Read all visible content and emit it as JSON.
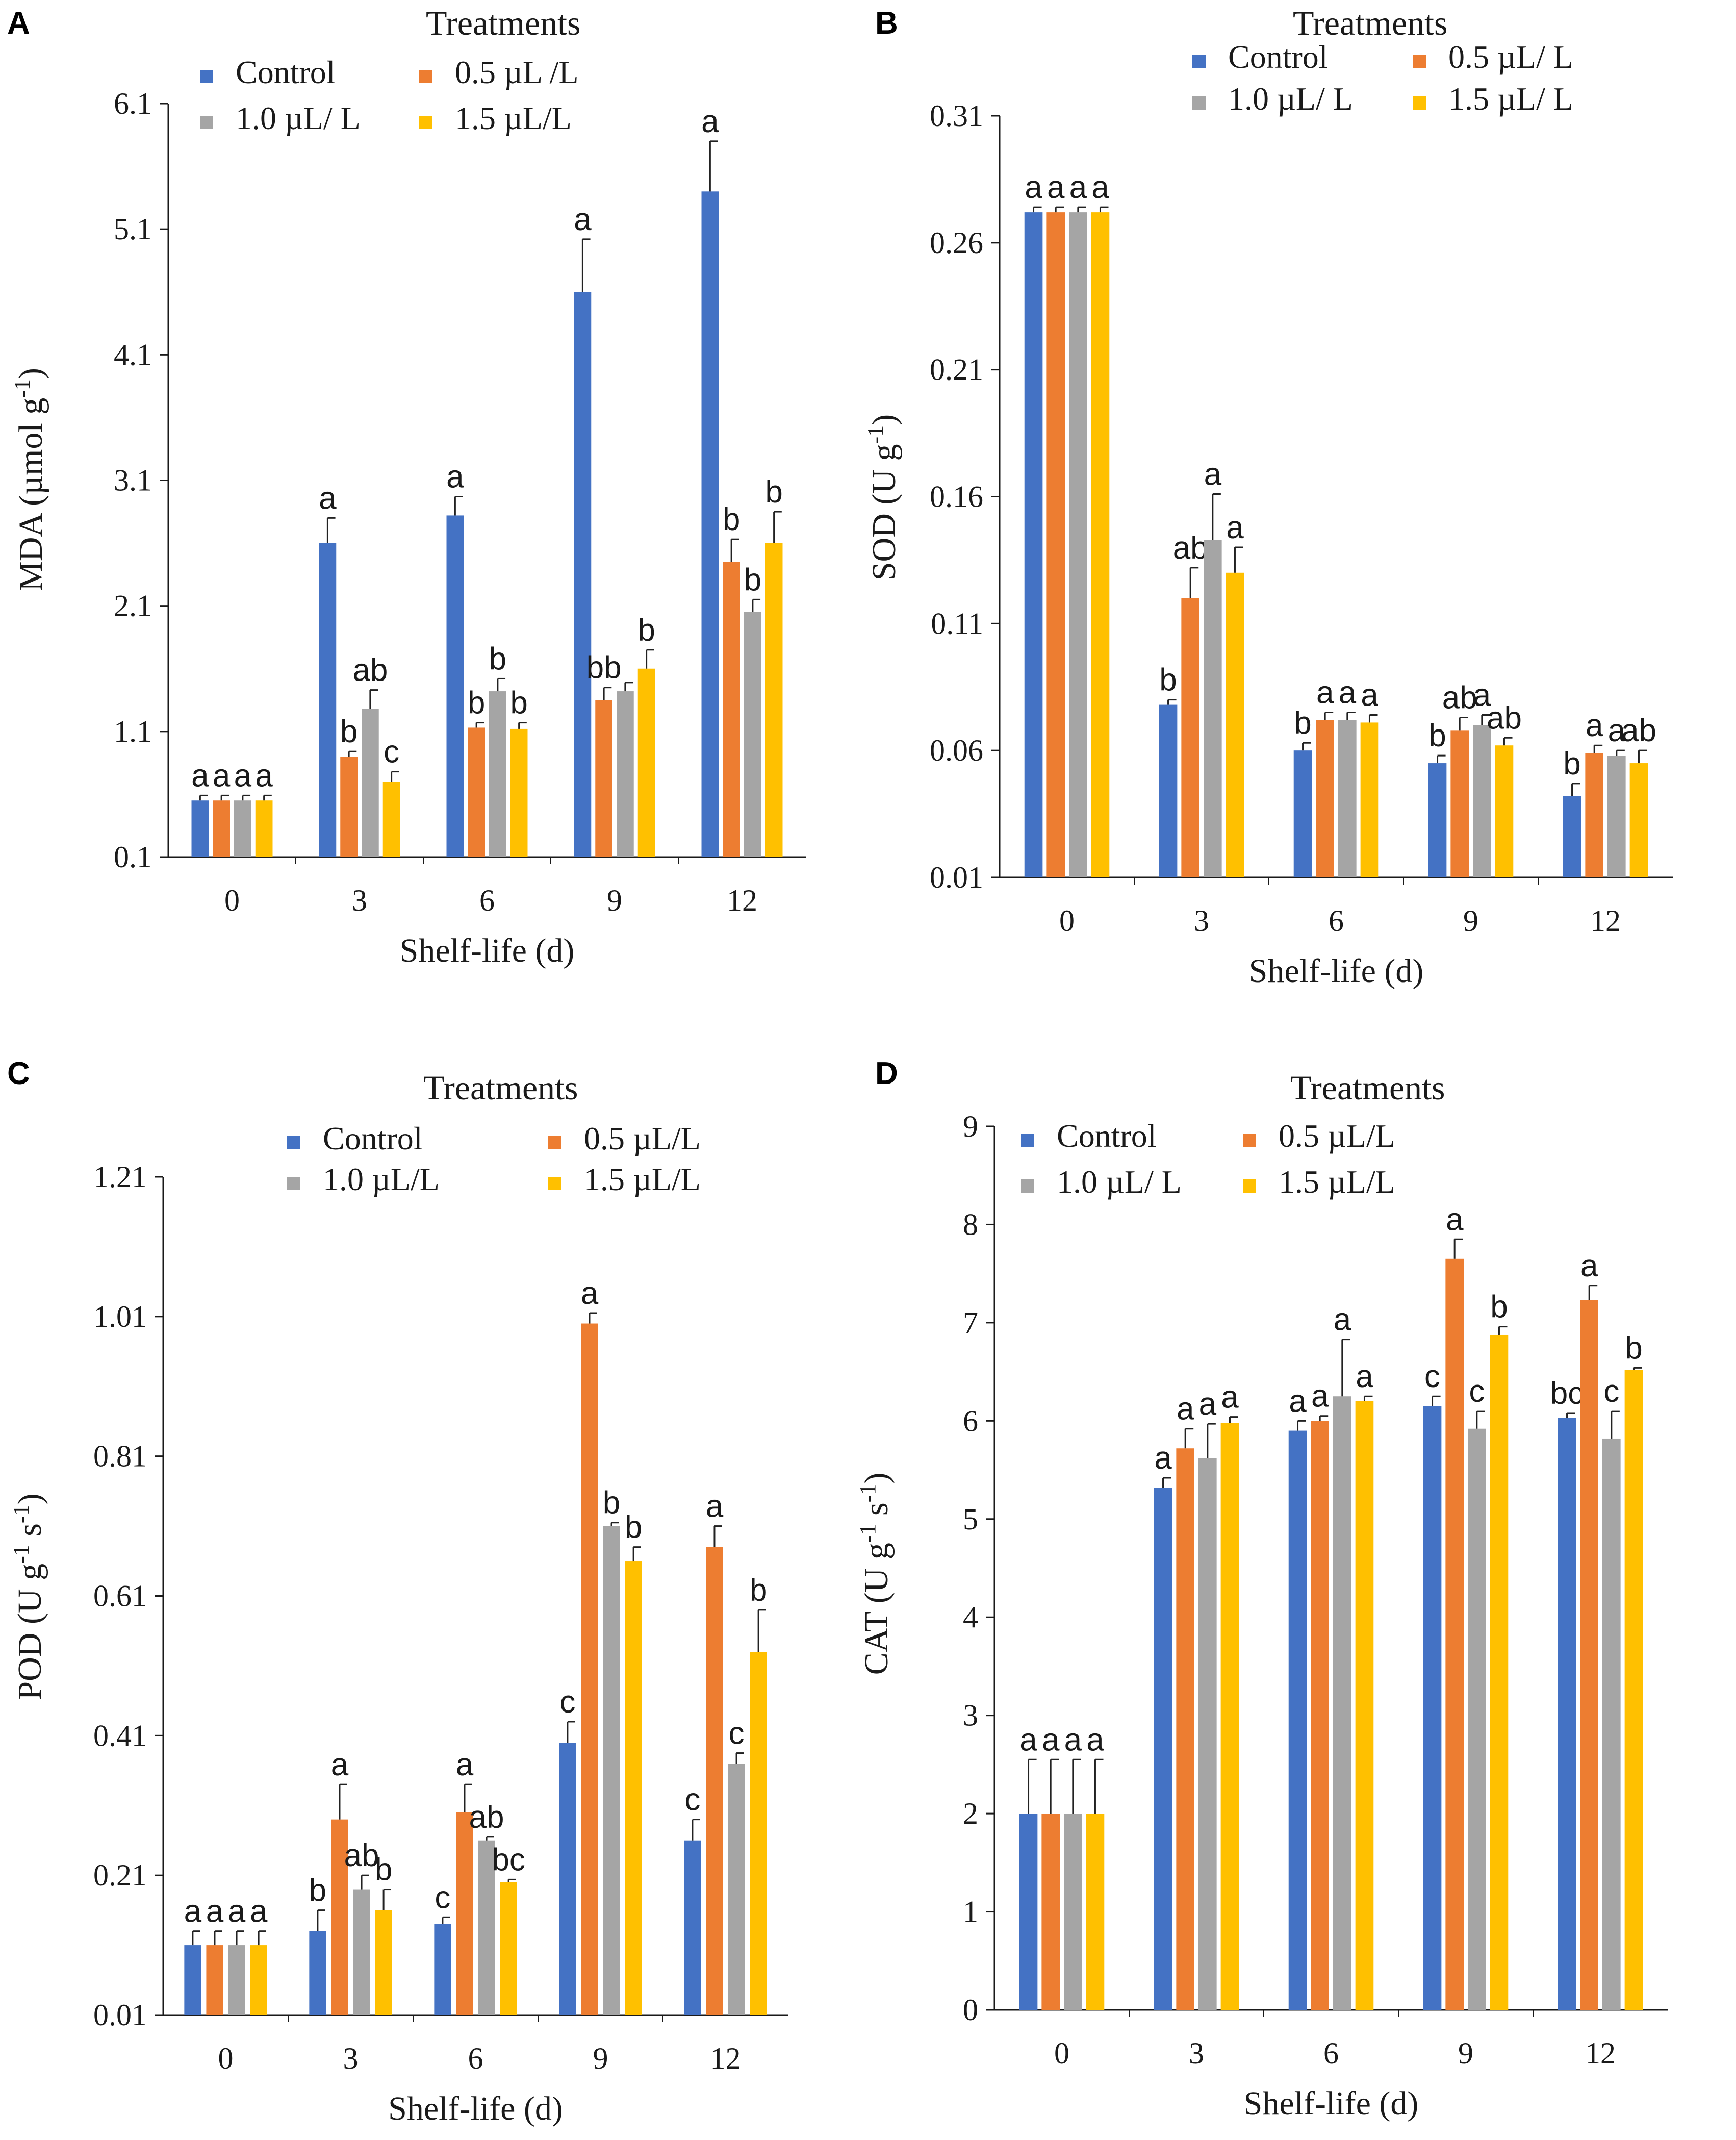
{
  "figure": {
    "legend_title": "Treatments",
    "xlabel": "Shelf-life (d)",
    "categories": [
      "0",
      "3",
      "6",
      "9",
      "12"
    ],
    "colors": [
      "#4472C4",
      "#ED7D31",
      "#A5A5A5",
      "#FFC000"
    ]
  },
  "chart_data": [
    {
      "panel": "A",
      "type": "bar",
      "title": "",
      "xlabel": "Shelf-life (d)",
      "ylabel": "MDA (µmol g-1)",
      "ylabel_main": "MDA (µmol g",
      "ylabel_sup": "-1",
      "ylabel_end": ")",
      "ylim": [
        0.1,
        6.1
      ],
      "yticks": [
        0.1,
        1.1,
        2.1,
        3.1,
        4.1,
        5.1,
        6.1
      ],
      "ytick_labels": [
        "0.1",
        "1.1",
        "2.1",
        "3.1",
        "4.1",
        "5.1",
        "6.1"
      ],
      "categories": [
        "0",
        "3",
        "6",
        "9",
        "12"
      ],
      "legend_title": "Treatments",
      "series": [
        {
          "name": "Control",
          "values": [
            0.55,
            2.6,
            2.82,
            4.6,
            5.4
          ],
          "errors": [
            0.04,
            0.2,
            0.15,
            0.42,
            0.4
          ],
          "labels": [
            "a",
            "a",
            "a",
            "a",
            "a"
          ]
        },
        {
          "name": "0.5 µL /L",
          "values": [
            0.55,
            0.9,
            1.13,
            1.35,
            2.45
          ],
          "errors": [
            0.04,
            0.04,
            0.04,
            0.1,
            0.18
          ],
          "labels": [
            "a",
            "b",
            "b",
            "bb",
            "b"
          ]
        },
        {
          "name": "1.0 µL/ L",
          "values": [
            0.55,
            1.28,
            1.42,
            1.42,
            2.05
          ],
          "errors": [
            0.04,
            0.15,
            0.1,
            0.07,
            0.1
          ],
          "labels": [
            "a",
            "ab",
            "b",
            "",
            "b"
          ]
        },
        {
          "name": "1.5 µL/L",
          "values": [
            0.55,
            0.7,
            1.12,
            1.6,
            2.6
          ],
          "errors": [
            0.04,
            0.08,
            0.05,
            0.15,
            0.25
          ],
          "labels": [
            "a",
            "c",
            "b",
            "b",
            "b"
          ]
        }
      ]
    },
    {
      "panel": "B",
      "type": "bar",
      "title": "",
      "xlabel": "Shelf-life (d)",
      "ylabel": "SOD (U g-1)",
      "ylabel_main": "SOD (U g",
      "ylabel_sup": "-1",
      "ylabel_end": ")",
      "ylim": [
        0.01,
        0.31
      ],
      "yticks": [
        0.01,
        0.06,
        0.11,
        0.16,
        0.21,
        0.26,
        0.31
      ],
      "ytick_labels": [
        "0.01",
        "0.06",
        "0.11",
        "0.16",
        "0.21",
        "0.26",
        "0.31"
      ],
      "categories": [
        "0",
        "3",
        "6",
        "9",
        "12"
      ],
      "legend_title": "Treatments",
      "series": [
        {
          "name": "Control",
          "values": [
            0.272,
            0.078,
            0.06,
            0.055,
            0.042
          ],
          "errors": [
            0.002,
            0.002,
            0.003,
            0.003,
            0.005
          ],
          "labels": [
            "a",
            "b",
            "b",
            "b",
            "b"
          ]
        },
        {
          "name": "0.5 µL/ L",
          "values": [
            0.272,
            0.12,
            0.072,
            0.068,
            0.059
          ],
          "errors": [
            0.002,
            0.012,
            0.003,
            0.005,
            0.003
          ],
          "labels": [
            "a",
            "ab",
            "a",
            "ab",
            "a"
          ]
        },
        {
          "name": "1.0 µL/ L",
          "values": [
            0.272,
            0.143,
            0.072,
            0.07,
            0.058
          ],
          "errors": [
            0.002,
            0.018,
            0.003,
            0.004,
            0.002
          ],
          "labels": [
            "a",
            "a",
            "a",
            "a",
            "a"
          ]
        },
        {
          "name": "1.5 µL/ L",
          "values": [
            0.272,
            0.13,
            0.071,
            0.062,
            0.055
          ],
          "errors": [
            0.002,
            0.01,
            0.003,
            0.003,
            0.005
          ],
          "labels": [
            "a",
            "a",
            "a",
            "ab",
            "ab"
          ]
        }
      ]
    },
    {
      "panel": "C",
      "type": "bar",
      "title": "",
      "xlabel": "Shelf-life (d)",
      "ylabel": "POD (U g-1 s-1)",
      "ylabel_main": "POD (U g",
      "ylabel_sup": "-1",
      "ylabel_mid": " s",
      "ylabel_sup2": "-1",
      "ylabel_end": ")",
      "ylim": [
        0.01,
        1.21
      ],
      "yticks": [
        0.01,
        0.21,
        0.41,
        0.61,
        0.81,
        1.01,
        1.21
      ],
      "ytick_labels": [
        "0.01",
        "0.21",
        "0.41",
        "0.61",
        "0.81",
        "1.01",
        "1.21"
      ],
      "categories": [
        "0",
        "3",
        "6",
        "9",
        "12"
      ],
      "legend_title": "Treatments",
      "series": [
        {
          "name": "Control",
          "values": [
            0.11,
            0.13,
            0.14,
            0.4,
            0.26
          ],
          "errors": [
            0.02,
            0.03,
            0.01,
            0.03,
            0.03
          ],
          "labels": [
            "a",
            "b",
            "c",
            "c",
            "c"
          ]
        },
        {
          "name": "0.5 µL/L",
          "values": [
            0.11,
            0.29,
            0.3,
            1.0,
            0.68
          ],
          "errors": [
            0.02,
            0.05,
            0.04,
            0.015,
            0.03
          ],
          "labels": [
            "a",
            "a",
            "a",
            "a",
            "a"
          ]
        },
        {
          "name": "1.0 µL/L",
          "values": [
            0.11,
            0.19,
            0.26,
            0.71,
            0.37
          ],
          "errors": [
            0.02,
            0.02,
            0.005,
            0.005,
            0.015
          ],
          "labels": [
            "a",
            "ab",
            "ab",
            "b",
            "c"
          ]
        },
        {
          "name": "1.5 µL/L",
          "values": [
            0.11,
            0.16,
            0.2,
            0.66,
            0.53
          ],
          "errors": [
            0.02,
            0.03,
            0.004,
            0.02,
            0.06
          ],
          "labels": [
            "a",
            "b",
            "bc",
            "b",
            "b"
          ]
        }
      ]
    },
    {
      "panel": "D",
      "type": "bar",
      "title": "",
      "xlabel": "Shelf-life (d)",
      "ylabel": "CAT (U g-1 s-1)",
      "ylabel_main": "CAT (U g",
      "ylabel_sup": "-1",
      "ylabel_mid": " s",
      "ylabel_sup2": "-1",
      "ylabel_end": ")",
      "ylim": [
        0,
        9
      ],
      "yticks": [
        0,
        1,
        2,
        3,
        4,
        5,
        6,
        7,
        8,
        9
      ],
      "ytick_labels": [
        "0",
        "1",
        "2",
        "3",
        "4",
        "5",
        "6",
        "7",
        "8",
        "9"
      ],
      "categories": [
        "0",
        "3",
        "6",
        "9",
        "12"
      ],
      "legend_title": "Treatments",
      "series": [
        {
          "name": "Control",
          "values": [
            2.0,
            5.32,
            5.9,
            6.15,
            6.03
          ],
          "errors": [
            0.55,
            0.1,
            0.1,
            0.1,
            0.05
          ],
          "labels": [
            "a",
            "a",
            "a",
            "c",
            "bc"
          ]
        },
        {
          "name": "0.5 µL/L",
          "values": [
            2.0,
            5.72,
            6.0,
            7.65,
            7.23
          ],
          "errors": [
            0.55,
            0.2,
            0.05,
            0.2,
            0.15
          ],
          "labels": [
            "a",
            "a",
            "a",
            "a",
            "a"
          ]
        },
        {
          "name": "1.0 µL/ L",
          "values": [
            2.0,
            5.62,
            6.25,
            5.92,
            5.82
          ],
          "errors": [
            0.55,
            0.35,
            0.58,
            0.18,
            0.28
          ],
          "labels": [
            "a",
            "a",
            "a",
            "c",
            "c"
          ]
        },
        {
          "name": "1.5 µL/L",
          "values": [
            2.0,
            5.98,
            6.2,
            6.88,
            6.52
          ],
          "errors": [
            0.55,
            0.06,
            0.05,
            0.08,
            0.02
          ],
          "labels": [
            "a",
            "a",
            "a",
            "b",
            "b"
          ]
        }
      ]
    }
  ]
}
